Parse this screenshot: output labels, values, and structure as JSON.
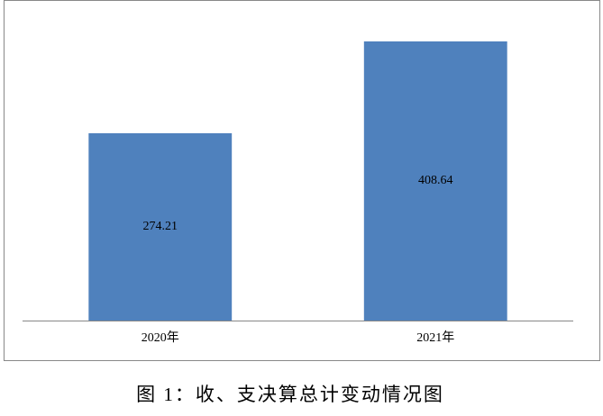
{
  "chart_data": {
    "type": "bar",
    "caption": "图 1：收、支决算总计变动情况图",
    "categories": [
      "2020年",
      "2021年"
    ],
    "values": [
      274.21,
      408.64
    ],
    "color": "#4f81bd"
  }
}
